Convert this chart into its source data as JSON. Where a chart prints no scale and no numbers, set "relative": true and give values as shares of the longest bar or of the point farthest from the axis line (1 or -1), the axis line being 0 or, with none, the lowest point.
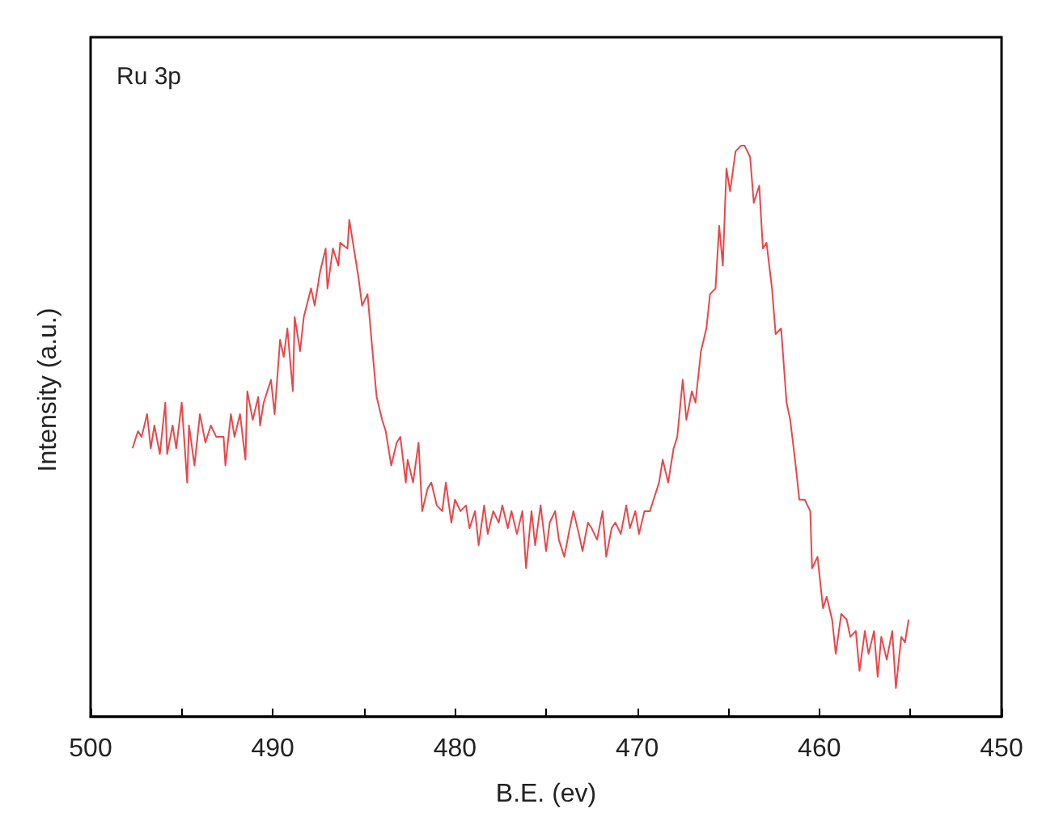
{
  "chart_data": {
    "type": "line",
    "title": "Ru 3p",
    "xlabel": "B.E. (ev)",
    "ylabel": "Intensity (a.u.)",
    "relative": true,
    "xlim": [
      500,
      450
    ],
    "xticks": [
      500,
      {
        "value": 495,
        "label": null
      },
      490,
      {
        "value": 485,
        "label": null
      },
      480,
      {
        "value": 475,
        "label": null
      },
      470,
      {
        "value": 465,
        "label": null
      },
      460,
      {
        "value": 455,
        "label": null
      },
      450
    ],
    "grid": false,
    "marker": "none",
    "line_style": "solid",
    "x": [
      497.7,
      497.4,
      497.2,
      496.9,
      496.7,
      496.5,
      496.2,
      495.9,
      495.8,
      495.5,
      495.3,
      495.0,
      494.7,
      494.6,
      494.3,
      494.0,
      493.7,
      493.4,
      493.1,
      492.7,
      492.6,
      492.3,
      492.1,
      491.8,
      491.5,
      491.4,
      491.1,
      490.8,
      490.7,
      490.5,
      490.1,
      489.9,
      489.6,
      489.4,
      489.2,
      488.9,
      488.8,
      488.5,
      488.3,
      487.9,
      487.7,
      487.4,
      487.1,
      487.0,
      486.7,
      486.4,
      486.3,
      485.9,
      485.8,
      485.5,
      485.3,
      485.1,
      484.8,
      484.5,
      484.3,
      484.0,
      483.8,
      483.5,
      483.2,
      483.0,
      482.7,
      482.6,
      482.3,
      482.0,
      481.8,
      481.5,
      481.3,
      481.0,
      480.7,
      480.5,
      480.2,
      480.0,
      479.7,
      479.4,
      479.2,
      478.9,
      478.7,
      478.4,
      478.2,
      477.9,
      477.6,
      477.4,
      477.1,
      476.9,
      476.6,
      476.3,
      476.1,
      475.8,
      475.6,
      475.3,
      475.0,
      474.8,
      474.5,
      474.3,
      474.0,
      473.7,
      473.5,
      473.2,
      473.0,
      472.7,
      472.5,
      472.2,
      471.9,
      471.7,
      471.4,
      471.2,
      470.9,
      470.6,
      470.4,
      470.1,
      469.9,
      469.6,
      469.3,
      469.1,
      468.8,
      468.6,
      468.3,
      468.0,
      467.8,
      467.5,
      467.3,
      467.0,
      466.8,
      466.5,
      466.2,
      466.0,
      465.7,
      465.5,
      465.3,
      465.1,
      464.9,
      464.6,
      464.3,
      464.1,
      463.8,
      463.6,
      463.3,
      463.1,
      462.9,
      462.6,
      462.4,
      462.1,
      461.8,
      461.6,
      461.3,
      461.1,
      460.8,
      460.5,
      460.4,
      460.1,
      459.8,
      459.6,
      459.3,
      459.1,
      458.8,
      458.5,
      458.3,
      458.0,
      457.8,
      457.5,
      457.3,
      457.0,
      456.8,
      456.6,
      456.3,
      456.0,
      455.8,
      455.5,
      455.3,
      455.1
    ],
    "series": [
      {
        "color": "#e8474a",
        "values": [
          0.47,
          0.5,
          0.49,
          0.53,
          0.47,
          0.51,
          0.46,
          0.55,
          0.46,
          0.51,
          0.47,
          0.55,
          0.41,
          0.51,
          0.44,
          0.53,
          0.48,
          0.51,
          0.49,
          0.49,
          0.44,
          0.53,
          0.49,
          0.53,
          0.45,
          0.57,
          0.52,
          0.56,
          0.51,
          0.55,
          0.59,
          0.53,
          0.66,
          0.63,
          0.68,
          0.57,
          0.7,
          0.64,
          0.7,
          0.75,
          0.72,
          0.78,
          0.82,
          0.75,
          0.82,
          0.79,
          0.83,
          0.82,
          0.87,
          0.81,
          0.77,
          0.72,
          0.74,
          0.63,
          0.56,
          0.52,
          0.5,
          0.44,
          0.48,
          0.49,
          0.41,
          0.45,
          0.41,
          0.48,
          0.36,
          0.4,
          0.41,
          0.37,
          0.36,
          0.41,
          0.34,
          0.38,
          0.36,
          0.37,
          0.33,
          0.36,
          0.3,
          0.37,
          0.32,
          0.36,
          0.34,
          0.37,
          0.33,
          0.36,
          0.32,
          0.36,
          0.26,
          0.36,
          0.3,
          0.37,
          0.29,
          0.34,
          0.36,
          0.31,
          0.28,
          0.33,
          0.36,
          0.32,
          0.29,
          0.34,
          0.33,
          0.31,
          0.36,
          0.28,
          0.33,
          0.34,
          0.32,
          0.37,
          0.33,
          0.36,
          0.32,
          0.36,
          0.36,
          0.38,
          0.41,
          0.45,
          0.41,
          0.47,
          0.49,
          0.59,
          0.52,
          0.57,
          0.55,
          0.64,
          0.68,
          0.74,
          0.75,
          0.86,
          0.79,
          0.96,
          0.92,
          0.99,
          1.0,
          1.0,
          0.98,
          0.9,
          0.93,
          0.82,
          0.83,
          0.75,
          0.67,
          0.68,
          0.55,
          0.52,
          0.44,
          0.38,
          0.38,
          0.36,
          0.26,
          0.28,
          0.19,
          0.21,
          0.17,
          0.11,
          0.18,
          0.17,
          0.14,
          0.15,
          0.08,
          0.15,
          0.11,
          0.15,
          0.07,
          0.14,
          0.1,
          0.15,
          0.05,
          0.14,
          0.13,
          0.17
        ]
      }
    ]
  }
}
